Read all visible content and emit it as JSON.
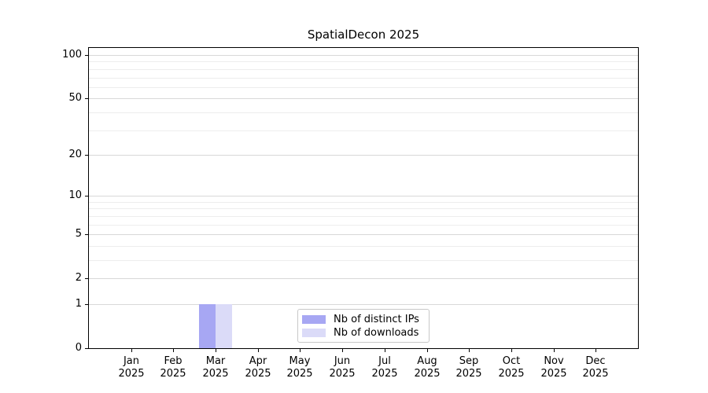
{
  "chart_data": {
    "type": "bar",
    "title": "SpatialDecon 2025",
    "categories": [
      "Jan",
      "Feb",
      "Mar",
      "Apr",
      "May",
      "Jun",
      "Jul",
      "Aug",
      "Sep",
      "Oct",
      "Nov",
      "Dec"
    ],
    "x_tick_second_line": "2025",
    "series": [
      {
        "name": "Nb of distinct IPs",
        "color": "#a7a7f3",
        "values": [
          0,
          0,
          1,
          0,
          0,
          0,
          0,
          0,
          0,
          0,
          0,
          0
        ]
      },
      {
        "name": "Nb of downloads",
        "color": "#dbdbf8",
        "values": [
          0,
          0,
          1,
          0,
          0,
          0,
          0,
          0,
          0,
          0,
          0,
          0
        ]
      }
    ],
    "y_axis": {
      "scale": "log1p",
      "min": 0,
      "max": 112,
      "major_ticks": [
        0,
        1,
        2,
        5,
        10,
        20,
        50,
        100
      ],
      "major_tick_labels": [
        "0",
        "1",
        "2",
        "5",
        "10",
        "20",
        "50",
        "100"
      ],
      "minor_ticks": [
        3,
        4,
        6,
        7,
        8,
        9,
        30,
        40,
        60,
        70,
        80,
        90
      ]
    },
    "xlabel": "",
    "ylabel": "",
    "grid": {
      "major_color": "#d8d8d8",
      "minor_color": "#ededed",
      "horizontal_only": true
    },
    "legend": {
      "position": "lower center",
      "entries": [
        "Nb of distinct IPs",
        "Nb of downloads"
      ]
    },
    "colors": {
      "axis": "#000000",
      "text": "#000000",
      "background": "#ffffff"
    }
  }
}
